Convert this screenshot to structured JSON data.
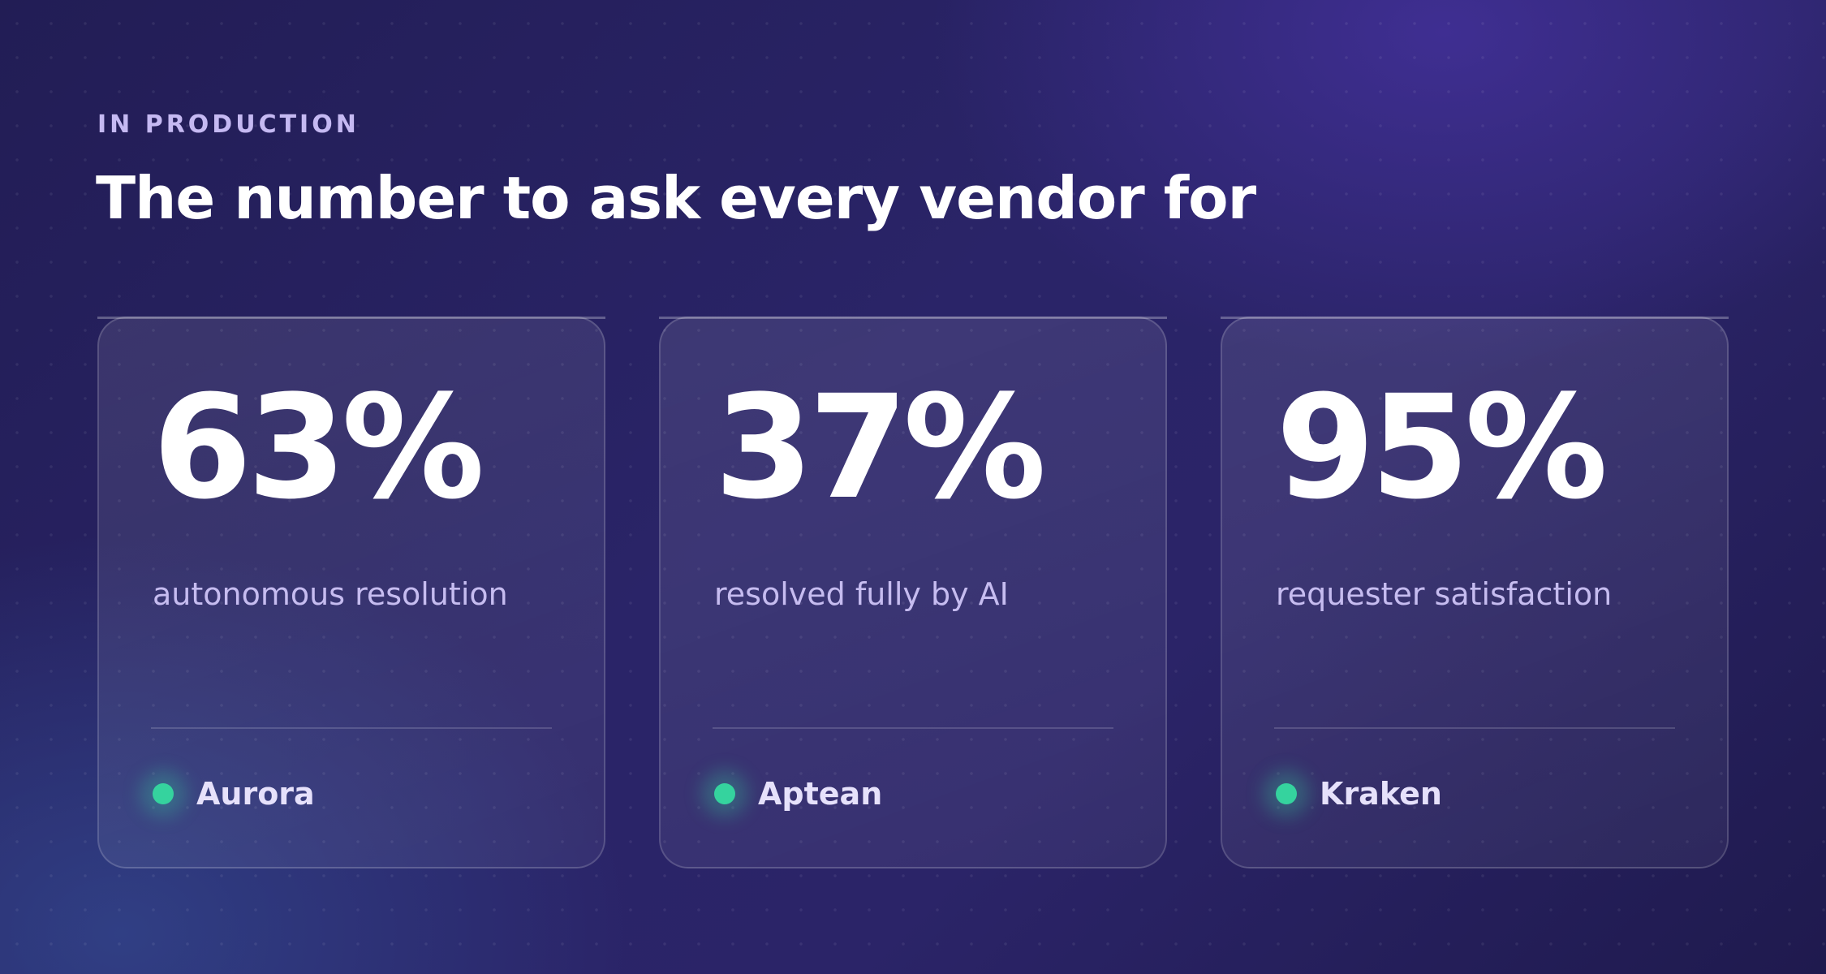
{
  "header": {
    "eyebrow": "IN PRODUCTION",
    "title": "The number to ask every vendor for"
  },
  "cards": [
    {
      "value": "63%",
      "caption": "autonomous resolution",
      "vendor": "Aurora"
    },
    {
      "value": "37%",
      "caption": "resolved fully by AI",
      "vendor": "Aptean"
    },
    {
      "value": "95%",
      "caption": "requester satisfaction",
      "vendor": "Kraken"
    }
  ],
  "colors": {
    "background": "#2a2468",
    "accent": "#35d39e",
    "eyebrow": "#c5b9f2",
    "caption": "#c6bcf0"
  },
  "icons": {
    "status": "status-dot-icon"
  }
}
